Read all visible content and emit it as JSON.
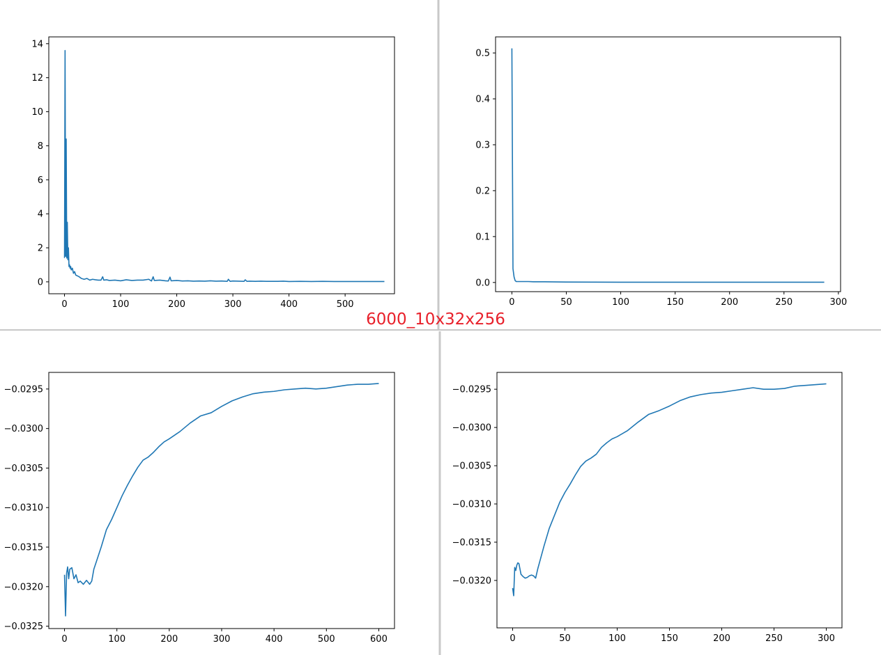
{
  "caption": "6000_10x32x256",
  "colors": {
    "line": "#1f77b4",
    "caption": "#e8202a",
    "divider": "#c8c8c8",
    "axis": "#000000"
  },
  "chart_data": [
    {
      "type": "line",
      "position": "top-left",
      "xlim": [
        -28,
        588
      ],
      "ylim": [
        -0.7,
        14.4
      ],
      "xticks": [
        0,
        100,
        200,
        300,
        400,
        500
      ],
      "xtick_labels": [
        "0",
        "100",
        "200",
        "300",
        "400",
        "500"
      ],
      "yticks": [
        0,
        2,
        4,
        6,
        8,
        10,
        12,
        14
      ],
      "ytick_labels": [
        "0",
        "2",
        "4",
        "6",
        "8",
        "10",
        "12",
        "14"
      ],
      "grid": false,
      "series": [
        {
          "x": [
            0,
            1,
            2,
            3,
            4,
            5,
            6,
            7,
            8,
            9,
            10,
            11,
            12,
            14,
            16,
            18,
            20,
            23,
            26,
            30,
            35,
            40,
            45,
            50,
            55,
            60,
            65,
            68,
            70,
            75,
            80,
            90,
            100,
            110,
            120,
            130,
            140,
            150,
            155,
            158,
            160,
            170,
            180,
            185,
            188,
            190,
            200,
            210,
            220,
            230,
            240,
            250,
            260,
            270,
            280,
            290,
            292,
            295,
            300,
            310,
            320,
            322,
            325,
            330,
            340,
            350,
            360,
            370,
            380,
            390,
            400,
            420,
            440,
            460,
            480,
            500,
            520,
            540,
            560,
            570
          ],
          "y": [
            1.4,
            13.6,
            1.5,
            8.4,
            1.4,
            3.5,
            1.3,
            2.0,
            0.9,
            1.0,
            0.8,
            0.9,
            0.7,
            0.8,
            0.5,
            0.6,
            0.4,
            0.35,
            0.3,
            0.2,
            0.15,
            0.2,
            0.1,
            0.15,
            0.12,
            0.1,
            0.1,
            0.3,
            0.1,
            0.12,
            0.08,
            0.1,
            0.06,
            0.12,
            0.08,
            0.1,
            0.1,
            0.15,
            0.05,
            0.3,
            0.08,
            0.1,
            0.06,
            0.05,
            0.28,
            0.06,
            0.08,
            0.05,
            0.06,
            0.04,
            0.05,
            0.04,
            0.06,
            0.04,
            0.05,
            0.03,
            0.15,
            0.03,
            0.05,
            0.04,
            0.03,
            0.12,
            0.03,
            0.04,
            0.03,
            0.04,
            0.03,
            0.03,
            0.03,
            0.04,
            0.02,
            0.03,
            0.02,
            0.03,
            0.02,
            0.02,
            0.02,
            0.02,
            0.02,
            0.02
          ]
        }
      ]
    },
    {
      "type": "line",
      "position": "top-right",
      "xlim": [
        -15,
        302
      ],
      "ylim": [
        -0.02,
        0.535
      ],
      "xticks": [
        0,
        50,
        100,
        150,
        200,
        250,
        300
      ],
      "xtick_labels": [
        "0",
        "50",
        "100",
        "150",
        "200",
        "250",
        "300"
      ],
      "yticks": [
        0.0,
        0.1,
        0.2,
        0.3,
        0.4,
        0.5
      ],
      "ytick_labels": [
        "0.0",
        "0.1",
        "0.2",
        "0.3",
        "0.4",
        "0.5"
      ],
      "grid": false,
      "series": [
        {
          "x": [
            0,
            1,
            2,
            3,
            4,
            6,
            10,
            15,
            20,
            30,
            50,
            100,
            150,
            200,
            250,
            287
          ],
          "y": [
            0.51,
            0.03,
            0.012,
            0.004,
            0.002,
            0.002,
            0.002,
            0.002,
            0.0015,
            0.0015,
            0.001,
            0.0005,
            0.0005,
            0.0005,
            0.0005,
            0.0005
          ]
        }
      ]
    },
    {
      "type": "line",
      "position": "bottom-left",
      "xlim": [
        -30,
        630
      ],
      "ylim": [
        -0.03253,
        -0.02929
      ],
      "xticks": [
        0,
        100,
        200,
        300,
        400,
        500,
        600
      ],
      "xtick_labels": [
        "0",
        "100",
        "200",
        "300",
        "400",
        "500",
        "600"
      ],
      "yticks": [
        -0.0325,
        -0.032,
        -0.0315,
        -0.031,
        -0.0305,
        -0.03,
        -0.0295
      ],
      "ytick_labels": [
        "−0.0325",
        "−0.0320",
        "−0.0315",
        "−0.0310",
        "−0.0305",
        "−0.0300",
        "−0.0295"
      ],
      "grid": false,
      "series": [
        {
          "x": [
            0,
            2,
            4,
            6,
            8,
            10,
            14,
            18,
            22,
            26,
            30,
            36,
            42,
            48,
            52,
            56,
            60,
            70,
            80,
            90,
            100,
            110,
            120,
            130,
            140,
            150,
            160,
            170,
            180,
            190,
            200,
            220,
            240,
            260,
            280,
            300,
            320,
            340,
            360,
            380,
            400,
            420,
            440,
            460,
            480,
            500,
            520,
            540,
            560,
            580,
            600
          ],
          "y": [
            -0.03185,
            -0.03237,
            -0.03183,
            -0.03175,
            -0.0319,
            -0.03178,
            -0.03176,
            -0.0319,
            -0.03185,
            -0.03195,
            -0.03193,
            -0.03197,
            -0.03192,
            -0.03197,
            -0.03193,
            -0.03178,
            -0.0317,
            -0.0315,
            -0.03128,
            -0.03115,
            -0.031,
            -0.03085,
            -0.03072,
            -0.0306,
            -0.03049,
            -0.0304,
            -0.03036,
            -0.0303,
            -0.03023,
            -0.03017,
            -0.03013,
            -0.03004,
            -0.02993,
            -0.02984,
            -0.0298,
            -0.02972,
            -0.02965,
            -0.0296,
            -0.02956,
            -0.02954,
            -0.02953,
            -0.02951,
            -0.0295,
            -0.02949,
            -0.0295,
            -0.02949,
            -0.02947,
            -0.02945,
            -0.02944,
            -0.02944,
            -0.02943
          ]
        }
      ]
    },
    {
      "type": "line",
      "position": "bottom-right",
      "xlim": [
        -15,
        315
      ],
      "ylim": [
        -0.03262,
        -0.02928
      ],
      "xticks": [
        0,
        50,
        100,
        150,
        200,
        250,
        300
      ],
      "xtick_labels": [
        "0",
        "50",
        "100",
        "150",
        "200",
        "250",
        "300"
      ],
      "yticks": [
        -0.032,
        -0.0315,
        -0.031,
        -0.0305,
        -0.03,
        -0.0295
      ],
      "ytick_labels": [
        "−0.0320",
        "−0.0315",
        "−0.0310",
        "−0.0305",
        "−0.0300",
        "−0.0295"
      ],
      "grid": false,
      "series": [
        {
          "x": [
            0,
            1,
            2,
            3,
            4,
            5,
            6,
            7,
            8,
            10,
            12,
            14,
            16,
            18,
            20,
            22,
            24,
            26,
            28,
            30,
            35,
            40,
            45,
            50,
            55,
            60,
            65,
            70,
            75,
            80,
            85,
            90,
            95,
            100,
            110,
            120,
            130,
            140,
            150,
            160,
            170,
            180,
            190,
            200,
            210,
            220,
            230,
            240,
            250,
            260,
            270,
            280,
            290,
            300
          ],
          "y": [
            -0.0321,
            -0.0322,
            -0.03183,
            -0.03187,
            -0.0318,
            -0.03177,
            -0.03178,
            -0.03185,
            -0.03192,
            -0.03195,
            -0.03197,
            -0.03196,
            -0.03194,
            -0.03193,
            -0.03194,
            -0.03197,
            -0.03185,
            -0.03175,
            -0.03165,
            -0.03155,
            -0.03132,
            -0.03115,
            -0.03098,
            -0.03085,
            -0.03074,
            -0.03062,
            -0.03051,
            -0.03044,
            -0.0304,
            -0.03035,
            -0.03026,
            -0.0302,
            -0.03015,
            -0.03012,
            -0.03004,
            -0.02993,
            -0.02983,
            -0.02978,
            -0.02972,
            -0.02965,
            -0.0296,
            -0.02957,
            -0.02955,
            -0.02954,
            -0.02952,
            -0.0295,
            -0.02948,
            -0.0295,
            -0.0295,
            -0.02949,
            -0.02946,
            -0.02945,
            -0.02944,
            -0.02943
          ]
        }
      ]
    }
  ]
}
